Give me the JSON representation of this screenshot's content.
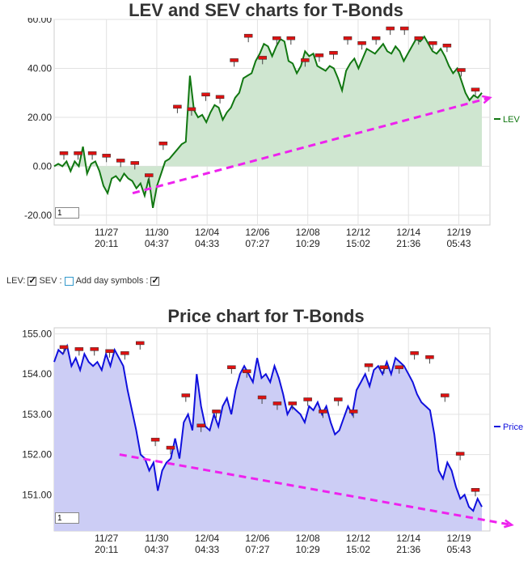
{
  "charts": {
    "top_title": "LEV and SEV charts for T-Bonds",
    "bottom_title": "Price chart for T-Bonds"
  },
  "controls": {
    "lev_label": "LEV:",
    "sev_label": "SEV :",
    "day_symbols_label": "Add day symbols :",
    "lev_checked": true,
    "sev_checked": false,
    "day_symbols_checked": true,
    "page_value_top": "1",
    "page_value_bottom": "1"
  },
  "colors": {
    "lev_line": "#117711",
    "lev_fill": "#cfe6d0",
    "price_line": "#1010dd",
    "price_fill": "#cccdf5",
    "trend": "#ee22ee",
    "marker_red": "#dd1111"
  },
  "chart_data": [
    {
      "type": "area",
      "title": "LEV and SEV charts for T-Bonds",
      "x_ticks": [
        "11/27\n20:11",
        "11/30\n04:37",
        "12/04\n04:33",
        "12/06\n07:27",
        "12/08\n10:29",
        "12/12\n15:02",
        "12/14\n21:36",
        "12/19\n05:43"
      ],
      "y_ticks": [
        "60.00",
        "40.00",
        "20.00",
        "0.00",
        "-20.00"
      ],
      "ylim": [
        -24,
        60
      ],
      "grid": true,
      "legend": "right",
      "series": [
        {
          "name": "LEV",
          "values": [
            0,
            1,
            0,
            2,
            -2,
            2,
            0,
            8,
            -3,
            1,
            2,
            -2,
            -8,
            -11,
            -5,
            -4,
            -6,
            -3,
            -5,
            -6,
            -9,
            -7,
            -12,
            -5,
            -17,
            -8,
            -3,
            2,
            3,
            5,
            7,
            9,
            10,
            37,
            23,
            20,
            21,
            18,
            22,
            25,
            24,
            19,
            22,
            24,
            28,
            30,
            36,
            37,
            38,
            43,
            46,
            50,
            49,
            45,
            49,
            52,
            51,
            43,
            42,
            38,
            41,
            47,
            45,
            46,
            41,
            40,
            39,
            41,
            40,
            36,
            31,
            39,
            42,
            44,
            40,
            44,
            48,
            47,
            46,
            48,
            50,
            47,
            46,
            49,
            47,
            43,
            46,
            49,
            52,
            51,
            53,
            50,
            47,
            46,
            48,
            45,
            41,
            38,
            40,
            35,
            30,
            27,
            29,
            28,
            30
          ],
          "color": "#117711"
        }
      ],
      "day_markers_y": [
        5,
        5,
        5,
        4,
        2,
        1,
        -4,
        9,
        24,
        23,
        29,
        28,
        43,
        53,
        44,
        52,
        52,
        43,
        45,
        46,
        52,
        50,
        52,
        56,
        56,
        52,
        50,
        49,
        39,
        31
      ],
      "trend_line": {
        "x": [
          0.18,
          1.0
        ],
        "y": [
          -11,
          28
        ]
      }
    },
    {
      "type": "area",
      "title": "Price chart for T-Bonds",
      "x_ticks": [
        "11/27\n20:11",
        "11/30\n04:37",
        "12/04\n04:33",
        "12/06\n07:27",
        "12/08\n10:29",
        "12/12\n15:02",
        "12/14\n21:36",
        "12/19\n05:43"
      ],
      "y_ticks": [
        "155.00",
        "154.00",
        "153.00",
        "152.00",
        "151.00"
      ],
      "ylim": [
        150.1,
        155.15
      ],
      "grid": true,
      "legend": "right",
      "series": [
        {
          "name": "Price",
          "values": [
            154.3,
            154.6,
            154.5,
            154.7,
            154.2,
            154.4,
            154.1,
            154.5,
            154.3,
            154.2,
            154.3,
            154.1,
            154.5,
            154.2,
            154.6,
            154.4,
            154.2,
            153.6,
            153.1,
            152.6,
            152.0,
            151.9,
            151.6,
            151.8,
            151.1,
            151.6,
            151.8,
            151.9,
            152.4,
            151.9,
            152.8,
            153.0,
            152.6,
            154.0,
            153.2,
            152.7,
            152.6,
            153.0,
            152.7,
            153.2,
            153.4,
            153.0,
            153.6,
            154.0,
            154.2,
            154.0,
            153.8,
            154.4,
            153.9,
            154.0,
            153.8,
            154.2,
            153.9,
            153.5,
            153.0,
            153.2,
            153.1,
            153.0,
            152.8,
            153.2,
            153.1,
            153.3,
            153.0,
            153.2,
            152.8,
            152.5,
            152.6,
            152.9,
            153.2,
            153.0,
            153.6,
            153.8,
            154.0,
            153.7,
            154.1,
            154.2,
            154.0,
            154.3,
            154.0,
            154.4,
            154.3,
            154.2,
            154.0,
            153.8,
            153.5,
            153.3,
            153.2,
            153.1,
            152.5,
            151.6,
            151.4,
            151.8,
            151.6,
            151.2,
            150.9,
            151.0,
            150.7,
            150.6,
            150.9,
            150.7
          ],
          "color": "#1010dd"
        }
      ],
      "day_markers_y": [
        154.65,
        154.6,
        154.6,
        154.55,
        154.5,
        154.75,
        152.35,
        152.15,
        153.45,
        152.7,
        153.05,
        154.15,
        154.05,
        153.4,
        153.25,
        153.25,
        153.35,
        153.05,
        153.35,
        153.05,
        154.2,
        154.15,
        154.15,
        154.5,
        154.4,
        153.45,
        152.0,
        151.1
      ],
      "trend_line": {
        "x": [
          0.15,
          1.05
        ],
        "y": [
          152.0,
          150.25
        ]
      }
    }
  ]
}
